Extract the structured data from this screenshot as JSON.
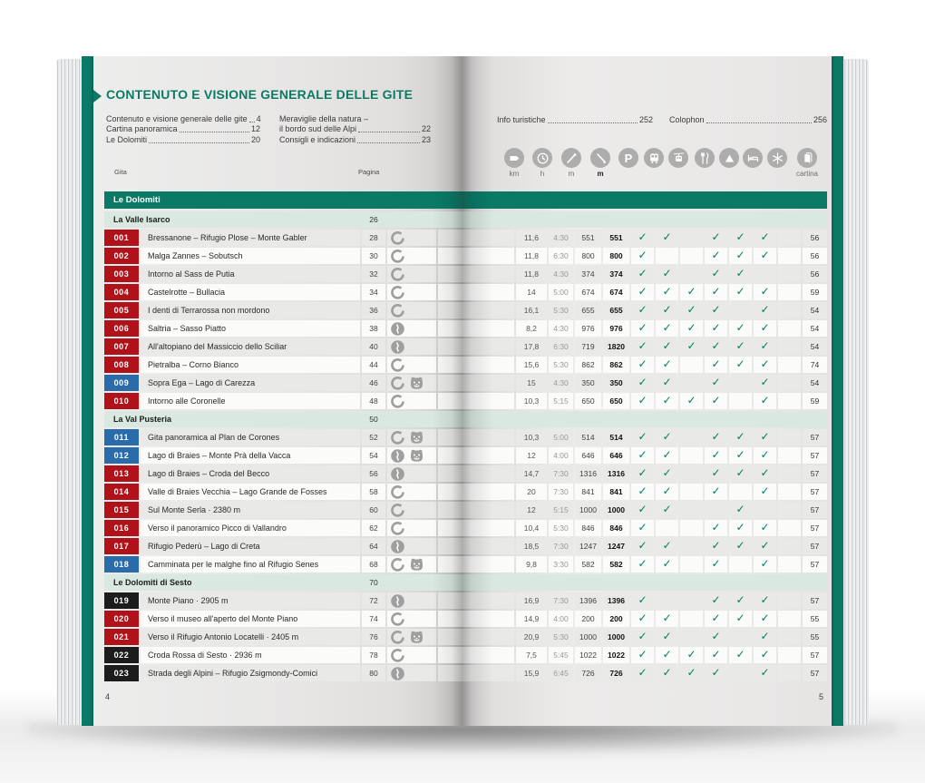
{
  "header": {
    "title": "CONTENUTO E VISIONE GENERALE DELLE GITE",
    "column_label_gita": "Gita",
    "column_label_pagina": "Pagina"
  },
  "book": {
    "left_folio": "4",
    "right_folio": "5"
  },
  "toc_left": [
    {
      "label": "Contenuto e visione generale delle gite",
      "page": "4"
    },
    {
      "label": "Cartina panoramica",
      "page": "12"
    },
    {
      "label": "Le Dolomiti",
      "page": "20"
    }
  ],
  "toc_mid": [
    {
      "label": "Meraviglie della natura –",
      "page": ""
    },
    {
      "label": "il bordo sud delle Alpi",
      "page": "22"
    },
    {
      "label": "Consigli e indicazioni",
      "page": "23"
    }
  ],
  "toc_right": [
    {
      "label": "Info turistiche",
      "page": "252"
    },
    {
      "label": "Colophon",
      "page": "256"
    }
  ],
  "legend": {
    "icons": [
      {
        "name": "signpost-icon",
        "label": "km"
      },
      {
        "name": "clock-icon",
        "label": "h"
      },
      {
        "name": "ascent-icon",
        "label": "m"
      },
      {
        "name": "descent-icon",
        "label": "m"
      },
      {
        "name": "parking-icon",
        "label": ""
      },
      {
        "name": "bus-icon",
        "label": ""
      },
      {
        "name": "cablecar-icon",
        "label": ""
      },
      {
        "name": "restaurant-icon",
        "label": ""
      },
      {
        "name": "peak-icon",
        "label": ""
      },
      {
        "name": "bed-icon",
        "label": ""
      },
      {
        "name": "snowflake-icon",
        "label": ""
      },
      {
        "name": "map-icon",
        "label": "cartina"
      }
    ]
  },
  "table": {
    "group_header": "Le Dolomiti",
    "feature_columns": [
      "parking",
      "bus",
      "cablecar",
      "restaurant",
      "peak",
      "bed",
      "snowflake"
    ],
    "sections": [
      {
        "name": "La Valle Isarco",
        "page": "26",
        "rows": [
          {
            "id": "001",
            "badge": "red",
            "route": "loop",
            "family": false,
            "title": "Bressanone – Rifugio Plose – Monte Gabler",
            "page": "28",
            "km": "11,6",
            "time": "4:30",
            "up": "551",
            "down": "551",
            "features": [
              1,
              1,
              0,
              1,
              1,
              1,
              0
            ],
            "map": "56"
          },
          {
            "id": "002",
            "badge": "red",
            "route": "loop",
            "family": false,
            "title": "Malga Zannes – Sobutsch",
            "page": "30",
            "km": "11,8",
            "time": "6:30",
            "up": "800",
            "down": "800",
            "features": [
              1,
              0,
              0,
              1,
              1,
              1,
              0
            ],
            "map": "56"
          },
          {
            "id": "003",
            "badge": "red",
            "route": "loop",
            "family": false,
            "title": "Intorno al Sass de Putia",
            "page": "32",
            "km": "11,8",
            "time": "4:30",
            "up": "374",
            "down": "374",
            "features": [
              1,
              1,
              0,
              1,
              1,
              0,
              0
            ],
            "map": "56"
          },
          {
            "id": "004",
            "badge": "red",
            "route": "loop",
            "family": false,
            "title": "Castelrotte – Bullacia",
            "page": "34",
            "km": "14",
            "time": "5:00",
            "up": "674",
            "down": "674",
            "features": [
              1,
              1,
              1,
              1,
              1,
              1,
              0
            ],
            "map": "59"
          },
          {
            "id": "005",
            "badge": "red",
            "route": "loop",
            "family": false,
            "title": "I denti di Terrarossa non mordono",
            "page": "36",
            "km": "16,1",
            "time": "5:30",
            "up": "655",
            "down": "655",
            "features": [
              1,
              1,
              1,
              1,
              0,
              1,
              0
            ],
            "map": "54"
          },
          {
            "id": "006",
            "badge": "red",
            "route": "wavy",
            "family": false,
            "title": "Saltria – Sasso Piatto",
            "page": "38",
            "km": "8,2",
            "time": "4:30",
            "up": "976",
            "down": "976",
            "features": [
              1,
              1,
              1,
              1,
              1,
              1,
              0
            ],
            "map": "54"
          },
          {
            "id": "007",
            "badge": "red",
            "route": "wavy",
            "family": false,
            "title": "All'altopiano del Massiccio dello Sciliar",
            "page": "40",
            "km": "17,8",
            "time": "6:30",
            "up": "719",
            "down": "1820",
            "features": [
              1,
              1,
              1,
              1,
              1,
              1,
              0
            ],
            "map": "54"
          },
          {
            "id": "008",
            "badge": "red",
            "route": "loop",
            "family": false,
            "title": "Pietralba – Corno Bianco",
            "page": "44",
            "km": "15,6",
            "time": "5:30",
            "up": "862",
            "down": "862",
            "features": [
              1,
              1,
              0,
              1,
              1,
              1,
              0
            ],
            "map": "74"
          },
          {
            "id": "009",
            "badge": "blue",
            "route": "loop",
            "family": true,
            "title": "Sopra Ega – Lago di Carezza",
            "page": "46",
            "km": "15",
            "time": "4:30",
            "up": "350",
            "down": "350",
            "features": [
              1,
              1,
              0,
              1,
              0,
              1,
              0
            ],
            "map": "54"
          },
          {
            "id": "010",
            "badge": "red",
            "route": "loop",
            "family": false,
            "title": "Intorno alle Coronelle",
            "page": "48",
            "km": "10,3",
            "time": "5:15",
            "up": "650",
            "down": "650",
            "features": [
              1,
              1,
              1,
              1,
              0,
              1,
              0
            ],
            "map": "59"
          }
        ]
      },
      {
        "name": "La Val Pusteria",
        "page": "50",
        "rows": [
          {
            "id": "011",
            "badge": "blue",
            "route": "loop",
            "family": true,
            "title": "Gita panoramica al Plan de Corones",
            "page": "52",
            "km": "10,3",
            "time": "5:00",
            "up": "514",
            "down": "514",
            "features": [
              1,
              1,
              0,
              1,
              1,
              1,
              0
            ],
            "map": "57"
          },
          {
            "id": "012",
            "badge": "blue",
            "route": "wavy",
            "family": true,
            "title": "Lago di Braies – Monte Prà della Vacca",
            "page": "54",
            "km": "12",
            "time": "4:00",
            "up": "646",
            "down": "646",
            "features": [
              1,
              1,
              0,
              1,
              1,
              1,
              0
            ],
            "map": "57"
          },
          {
            "id": "013",
            "badge": "red",
            "route": "wavy",
            "family": false,
            "title": "Lago di Braies – Croda del Becco",
            "page": "56",
            "km": "14,7",
            "time": "7:30",
            "up": "1316",
            "down": "1316",
            "features": [
              1,
              1,
              0,
              1,
              1,
              1,
              0
            ],
            "map": "57"
          },
          {
            "id": "014",
            "badge": "red",
            "route": "loop",
            "family": false,
            "title": "Valle di Braies Vecchia – Lago Grande de Fosses",
            "page": "58",
            "km": "20",
            "time": "7:30",
            "up": "841",
            "down": "841",
            "features": [
              1,
              1,
              0,
              1,
              0,
              1,
              0
            ],
            "map": "57"
          },
          {
            "id": "015",
            "badge": "red",
            "route": "loop",
            "family": false,
            "title": "Sul Monte Serla · 2380 m",
            "page": "60",
            "km": "12",
            "time": "5:15",
            "up": "1000",
            "down": "1000",
            "features": [
              1,
              1,
              0,
              0,
              1,
              0,
              0
            ],
            "map": "57"
          },
          {
            "id": "016",
            "badge": "red",
            "route": "loop",
            "family": false,
            "title": "Verso il panoramico Picco di Vallandro",
            "page": "62",
            "km": "10,4",
            "time": "5:30",
            "up": "846",
            "down": "846",
            "features": [
              1,
              0,
              0,
              1,
              1,
              1,
              0
            ],
            "map": "57"
          },
          {
            "id": "017",
            "badge": "red",
            "route": "wavy",
            "family": false,
            "title": "Rifugio Pederù – Lago di Creta",
            "page": "64",
            "km": "18,5",
            "time": "7:30",
            "up": "1247",
            "down": "1247",
            "features": [
              1,
              1,
              0,
              1,
              1,
              1,
              0
            ],
            "map": "57"
          },
          {
            "id": "018",
            "badge": "blue",
            "route": "loop",
            "family": true,
            "title": "Camminata per le malghe fino al Rifugio Senes",
            "page": "68",
            "km": "9,8",
            "time": "3:30",
            "up": "582",
            "down": "582",
            "features": [
              1,
              1,
              0,
              1,
              0,
              1,
              0
            ],
            "map": "57"
          }
        ]
      },
      {
        "name": "Le Dolomiti di Sesto",
        "page": "70",
        "rows": [
          {
            "id": "019",
            "badge": "black",
            "route": "wavy",
            "family": false,
            "title": "Monte Piano · 2905 m",
            "page": "72",
            "km": "16,9",
            "time": "7:30",
            "up": "1396",
            "down": "1396",
            "features": [
              1,
              0,
              0,
              1,
              1,
              1,
              0
            ],
            "map": "57"
          },
          {
            "id": "020",
            "badge": "red",
            "route": "loop",
            "family": false,
            "title": "Verso il museo all'aperto del Monte Piano",
            "page": "74",
            "km": "14,9",
            "time": "4:00",
            "up": "200",
            "down": "200",
            "features": [
              1,
              1,
              0,
              1,
              1,
              1,
              0
            ],
            "map": "55"
          },
          {
            "id": "021",
            "badge": "red",
            "route": "loop",
            "family": true,
            "title": "Verso il Rifugio Antonio Locatelli · 2405 m",
            "page": "76",
            "km": "20,9",
            "time": "5:30",
            "up": "1000",
            "down": "1000",
            "features": [
              1,
              1,
              0,
              1,
              0,
              1,
              0
            ],
            "map": "55"
          },
          {
            "id": "022",
            "badge": "black",
            "route": "loop",
            "family": false,
            "title": "Croda Rossa di Sesto · 2936 m",
            "page": "78",
            "km": "7,5",
            "time": "5:45",
            "up": "1022",
            "down": "1022",
            "features": [
              1,
              1,
              1,
              1,
              1,
              1,
              0
            ],
            "map": "57"
          },
          {
            "id": "023",
            "badge": "black",
            "route": "wavy",
            "family": false,
            "title": "Strada degli Alpini – Rifugio Zsigmondy-Comici",
            "page": "80",
            "km": "15,9",
            "time": "6:45",
            "up": "726",
            "down": "726",
            "features": [
              1,
              1,
              1,
              1,
              0,
              1,
              0
            ],
            "map": "57"
          }
        ]
      }
    ]
  },
  "colors": {
    "teal": "#0a7a67",
    "section_green": "#d9e8e1",
    "badge_red": "#b11119",
    "badge_blue": "#2a6cab",
    "badge_black": "#1c1c1c",
    "check": "#007a62"
  }
}
